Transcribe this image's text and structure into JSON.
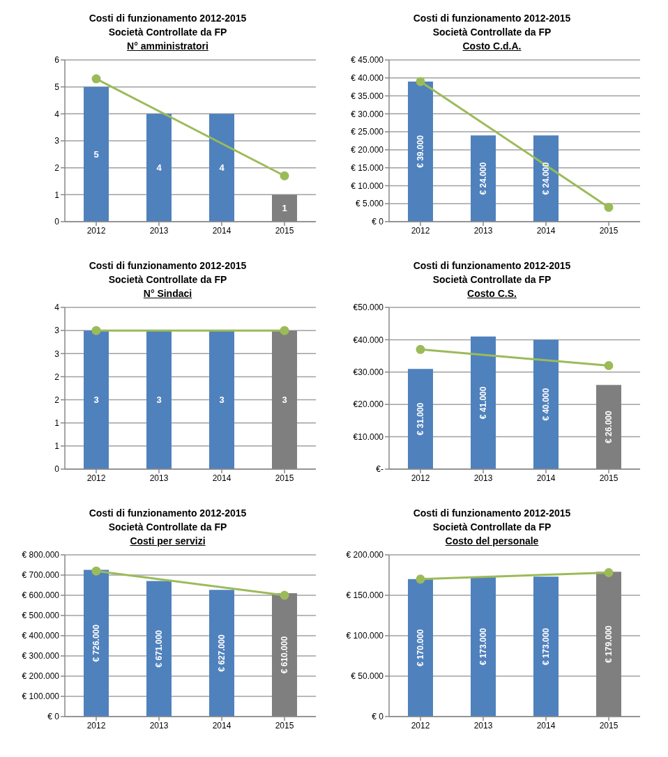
{
  "chart_data": [
    {
      "type": "bar",
      "title": "Costi di funzionamento 2012-2015\nSocietà  Controllate da FP",
      "subtitle": "N° amministratori",
      "categories": [
        "2012",
        "2013",
        "2014",
        "2015"
      ],
      "ylim": [
        0,
        6
      ],
      "yticks": [
        0,
        1,
        2,
        3,
        4,
        5,
        6
      ],
      "grid": "y",
      "series": [
        {
          "type": "bar",
          "values": [
            5,
            4,
            4,
            1
          ],
          "colors": [
            "#4f81bd",
            "#4f81bd",
            "#4f81bd",
            "#7f7f7f"
          ],
          "value_labels": [
            "5",
            "4",
            "4",
            "1"
          ]
        },
        {
          "type": "line",
          "values": [
            5.3,
            null,
            null,
            1.7
          ],
          "color": "#9bbb59",
          "marker": "circle"
        }
      ]
    },
    {
      "type": "bar",
      "title": "Costi di funzionamento 2012-2015\nSocietà  Controllate da FP",
      "subtitle": "Costo C.d.A.",
      "categories": [
        "2012",
        "2013",
        "2014",
        "2015"
      ],
      "ylim": [
        0,
        45000
      ],
      "yticks": [
        {
          "value": 0,
          "label": "€ 0"
        },
        {
          "value": 5000,
          "label": "€ 5.000"
        },
        {
          "value": 10000,
          "label": "€ 10.000"
        },
        {
          "value": 15000,
          "label": "€ 15.000"
        },
        {
          "value": 20000,
          "label": "€ 20.000"
        },
        {
          "value": 25000,
          "label": "€ 25.000"
        },
        {
          "value": 30000,
          "label": "€ 30.000"
        },
        {
          "value": 35000,
          "label": "€ 35.000"
        },
        {
          "value": 40000,
          "label": "€ 40.000"
        },
        {
          "value": 45000,
          "label": "€ 45.000"
        }
      ],
      "grid": "y",
      "series": [
        {
          "type": "bar",
          "values": [
            39000,
            24000,
            24000,
            null
          ],
          "colors": [
            "#4f81bd",
            "#4f81bd",
            "#4f81bd",
            "#7f7f7f"
          ],
          "value_labels": [
            "€ 39.000",
            "€ 24.000",
            "€ 24.000",
            null
          ]
        },
        {
          "type": "line",
          "values": [
            39000,
            null,
            null,
            4000
          ],
          "color": "#9bbb59",
          "marker": "circle"
        }
      ]
    },
    {
      "type": "bar",
      "title": "Costi di funzionamento 2012-2015\nSocietà  Controllate da FP",
      "subtitle": "N° Sindaci",
      "categories": [
        "2012",
        "2013",
        "2014",
        "2015"
      ],
      "ylim": [
        0,
        3.5
      ],
      "yticks": [
        0,
        {
          "value": 0.5,
          "label": "1"
        },
        1,
        {
          "value": 1.5,
          "label": "2"
        },
        2,
        {
          "value": 2.5,
          "label": "3"
        },
        3,
        {
          "value": 3.5,
          "label": "4"
        }
      ],
      "grid": "y",
      "series": [
        {
          "type": "bar",
          "values": [
            3,
            3,
            3,
            3
          ],
          "colors": [
            "#4f81bd",
            "#4f81bd",
            "#4f81bd",
            "#7f7f7f"
          ],
          "value_labels": [
            "3",
            "3",
            "3",
            "3"
          ]
        },
        {
          "type": "line",
          "values": [
            3,
            null,
            null,
            3
          ],
          "color": "#9bbb59",
          "marker": "circle"
        }
      ]
    },
    {
      "type": "bar",
      "title": "Costi di funzionamento 2012-2015\nSocietà  Controllate da FP",
      "subtitle": "Costo C.S.",
      "categories": [
        "2012",
        "2013",
        "2014",
        "2015"
      ],
      "ylim": [
        0,
        50000
      ],
      "yticks": [
        {
          "value": 0,
          "label": "€-"
        },
        {
          "value": 10000,
          "label": "€10.000"
        },
        {
          "value": 20000,
          "label": "€20.000"
        },
        {
          "value": 30000,
          "label": "€30.000"
        },
        {
          "value": 40000,
          "label": "€40.000"
        },
        {
          "value": 50000,
          "label": "€50.000"
        }
      ],
      "grid": "y",
      "series": [
        {
          "type": "bar",
          "values": [
            31000,
            41000,
            40000,
            26000
          ],
          "colors": [
            "#4f81bd",
            "#4f81bd",
            "#4f81bd",
            "#7f7f7f"
          ],
          "value_labels": [
            "€ 31.000",
            "€ 41.000",
            "€ 40.000",
            "€ 26.000"
          ]
        },
        {
          "type": "line",
          "values": [
            37000,
            null,
            null,
            32000
          ],
          "color": "#9bbb59",
          "marker": "circle"
        }
      ]
    },
    {
      "type": "bar",
      "title": "Costi di funzionamento 2012-2015\nSocietà  Controllate da FP",
      "subtitle": "Costi per servizi",
      "categories": [
        "2012",
        "2013",
        "2014",
        "2015"
      ],
      "ylim": [
        0,
        800000
      ],
      "yticks": [
        {
          "value": 0,
          "label": "€ 0"
        },
        {
          "value": 100000,
          "label": "€ 100.000"
        },
        {
          "value": 200000,
          "label": "€ 200.000"
        },
        {
          "value": 300000,
          "label": "€ 300.000"
        },
        {
          "value": 400000,
          "label": "€ 400.000"
        },
        {
          "value": 500000,
          "label": "€ 500.000"
        },
        {
          "value": 600000,
          "label": "€ 600.000"
        },
        {
          "value": 700000,
          "label": "€ 700.000"
        },
        {
          "value": 800000,
          "label": "€ 800.000"
        }
      ],
      "grid": "y",
      "series": [
        {
          "type": "bar",
          "values": [
            726000,
            671000,
            627000,
            610000
          ],
          "colors": [
            "#4f81bd",
            "#4f81bd",
            "#4f81bd",
            "#7f7f7f"
          ],
          "value_labels": [
            "€ 726.000",
            "€ 671.000",
            "€ 627.000",
            "€ 610.000"
          ]
        },
        {
          "type": "line",
          "values": [
            720000,
            null,
            null,
            600000
          ],
          "color": "#9bbb59",
          "marker": "circle"
        }
      ]
    },
    {
      "type": "bar",
      "title": "Costi di funzionamento 2012-2015\nSocietà  Controllate da FP",
      "subtitle": "Costo del personale",
      "categories": [
        "2012",
        "2013",
        "2014",
        "2015"
      ],
      "ylim": [
        0,
        200000
      ],
      "yticks": [
        {
          "value": 0,
          "label": "€ 0"
        },
        {
          "value": 50000,
          "label": "€ 50.000"
        },
        {
          "value": 100000,
          "label": "€ 100.000"
        },
        {
          "value": 150000,
          "label": "€ 150.000"
        },
        {
          "value": 200000,
          "label": "€ 200.000"
        }
      ],
      "grid": "y",
      "series": [
        {
          "type": "bar",
          "values": [
            170000,
            173000,
            173000,
            179000
          ],
          "colors": [
            "#4f81bd",
            "#4f81bd",
            "#4f81bd",
            "#7f7f7f"
          ],
          "value_labels": [
            "€ 170.000",
            "€ 173.000",
            "€ 173.000",
            "€ 179.000"
          ]
        },
        {
          "type": "line",
          "values": [
            170000,
            null,
            null,
            178000
          ],
          "color": "#9bbb59",
          "marker": "circle"
        }
      ]
    }
  ]
}
